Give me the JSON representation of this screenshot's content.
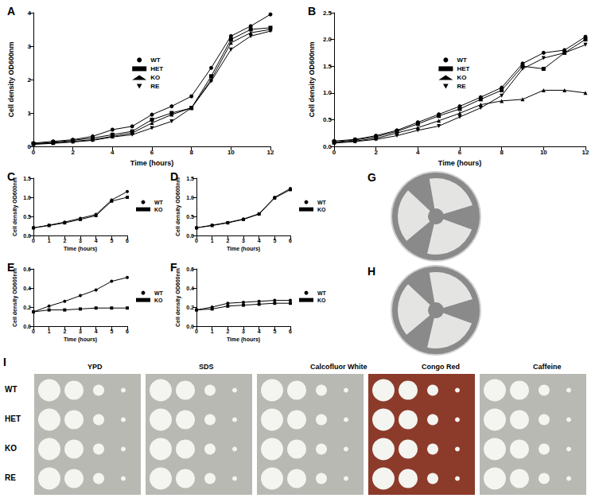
{
  "chart_data": [
    {
      "type": "line",
      "title": "A",
      "x_label": "Time (hours)",
      "y_label": "Cell density OD600nm",
      "x": [
        0,
        1,
        2,
        3,
        4,
        5,
        6,
        7,
        8,
        9,
        10,
        11,
        12
      ],
      "xlim": [
        0,
        12
      ],
      "xticks": [
        0,
        2,
        4,
        6,
        8,
        10,
        12
      ],
      "ylim": [
        0,
        4
      ],
      "yticks": [
        0,
        1,
        2,
        3,
        4
      ],
      "grid": false,
      "legend": "center",
      "series": [
        {
          "name": "WT",
          "color": "#000000",
          "marker": "circle",
          "values": [
            0.1,
            0.15,
            0.2,
            0.3,
            0.5,
            0.6,
            0.95,
            1.2,
            1.5,
            2.35,
            3.3,
            3.6,
            3.95
          ]
        },
        {
          "name": "HET",
          "color": "#000000",
          "marker": "square",
          "values": [
            0.08,
            0.12,
            0.18,
            0.25,
            0.35,
            0.45,
            0.8,
            1.0,
            1.15,
            2.1,
            3.2,
            3.5,
            3.55
          ]
        },
        {
          "name": "KO",
          "color": "#000000",
          "marker": "triangle",
          "values": [
            0.07,
            0.1,
            0.15,
            0.2,
            0.3,
            0.4,
            0.7,
            0.95,
            1.15,
            2.0,
            3.1,
            3.4,
            3.5
          ]
        },
        {
          "name": "RE",
          "color": "#000000",
          "marker": "inverted_triangle",
          "values": [
            0.06,
            0.09,
            0.13,
            0.18,
            0.28,
            0.35,
            0.55,
            0.75,
            1.15,
            1.95,
            2.9,
            3.3,
            3.45
          ]
        }
      ]
    },
    {
      "type": "line",
      "title": "B",
      "x_label": "Time (hours)",
      "y_label": "Cell density OD600nm",
      "x": [
        0,
        1,
        2,
        3,
        4,
        5,
        6,
        7,
        8,
        9,
        10,
        11,
        12
      ],
      "xlim": [
        0,
        12
      ],
      "xticks": [
        0,
        2,
        4,
        6,
        8,
        10,
        12
      ],
      "ylim": [
        0,
        2.5
      ],
      "yticks": [
        {
          "value": 0,
          "label": "0.0"
        },
        0.5,
        {
          "value": 1,
          "label": "1.0"
        },
        1.5,
        {
          "value": 2,
          "label": "2.0"
        },
        2.5
      ],
      "grid": false,
      "legend": "center",
      "series": [
        {
          "name": "WT",
          "color": "#000000",
          "marker": "circle",
          "values": [
            0.1,
            0.13,
            0.2,
            0.3,
            0.45,
            0.6,
            0.75,
            0.92,
            1.1,
            1.55,
            1.75,
            1.8,
            2.05
          ]
        },
        {
          "name": "HET",
          "color": "#000000",
          "marker": "square",
          "values": [
            0.08,
            0.12,
            0.18,
            0.28,
            0.42,
            0.57,
            0.7,
            0.88,
            1.05,
            1.5,
            1.45,
            1.75,
            2.0
          ]
        },
        {
          "name": "KO",
          "color": "#000000",
          "marker": "triangle",
          "values": [
            0.07,
            0.1,
            0.15,
            0.25,
            0.35,
            0.48,
            0.62,
            0.78,
            0.85,
            0.88,
            1.05,
            1.05,
            1.0
          ]
        },
        {
          "name": "RE",
          "color": "#000000",
          "marker": "inverted_triangle",
          "values": [
            0.06,
            0.09,
            0.13,
            0.2,
            0.3,
            0.38,
            0.55,
            0.72,
            0.95,
            1.45,
            1.65,
            1.75,
            1.9
          ]
        }
      ]
    },
    {
      "type": "line",
      "title": "C",
      "x_label": "Time (hours)",
      "y_label": "Cell density OD600nm",
      "x": [
        0,
        1,
        2,
        3,
        4,
        5,
        6
      ],
      "xlim": [
        0,
        6
      ],
      "xticks": [
        0,
        1,
        2,
        3,
        4,
        5,
        6
      ],
      "ylim": [
        0,
        1.5
      ],
      "yticks": [
        {
          "value": 0,
          "label": "0.0"
        },
        0.5,
        {
          "value": 1,
          "label": "1.0"
        },
        1.5
      ],
      "grid": false,
      "legend": "outside right",
      "series": [
        {
          "name": "WT",
          "color": "#000000",
          "marker": "circle",
          "values": [
            0.2,
            0.27,
            0.35,
            0.45,
            0.55,
            0.93,
            1.15
          ]
        },
        {
          "name": "KO",
          "color": "#000000",
          "marker": "square",
          "values": [
            0.2,
            0.26,
            0.33,
            0.42,
            0.52,
            0.9,
            1.0
          ]
        }
      ]
    },
    {
      "type": "line",
      "title": "D",
      "x_label": "Time (hours)",
      "y_label": "Cell density OD600nm",
      "x": [
        0,
        1,
        2,
        3,
        4,
        5,
        6
      ],
      "xlim": [
        0,
        6
      ],
      "xticks": [
        0,
        1,
        2,
        3,
        4,
        5,
        6
      ],
      "ylim": [
        0,
        1.5
      ],
      "yticks": [
        {
          "value": 0,
          "label": "0.0"
        },
        0.5,
        {
          "value": 1,
          "label": "1.0"
        },
        1.5
      ],
      "grid": false,
      "legend": "outside right",
      "series": [
        {
          "name": "WT",
          "color": "#000000",
          "marker": "circle",
          "values": [
            0.2,
            0.27,
            0.34,
            0.43,
            0.57,
            1.0,
            1.23
          ]
        },
        {
          "name": "KO",
          "color": "#000000",
          "marker": "square",
          "values": [
            0.2,
            0.26,
            0.33,
            0.42,
            0.56,
            0.98,
            1.2
          ]
        }
      ]
    },
    {
      "type": "line",
      "title": "E",
      "x_label": "Time (hours)",
      "y_label": "Cell density OD600nm",
      "x": [
        0,
        1,
        2,
        3,
        4,
        5,
        6
      ],
      "xlim": [
        0,
        6
      ],
      "xticks": [
        0,
        1,
        2,
        3,
        4,
        5,
        6
      ],
      "ylim": [
        0,
        0.6
      ],
      "yticks": [
        {
          "value": 0,
          "label": "0.0"
        },
        0.2,
        0.4,
        0.6
      ],
      "grid": false,
      "legend": "outside right",
      "series": [
        {
          "name": "WT",
          "color": "#000000",
          "marker": "circle",
          "values": [
            0.15,
            0.21,
            0.26,
            0.32,
            0.38,
            0.47,
            0.51
          ]
        },
        {
          "name": "KO",
          "color": "#000000",
          "marker": "square",
          "values": [
            0.15,
            0.17,
            0.17,
            0.18,
            0.19,
            0.19,
            0.19
          ]
        }
      ]
    },
    {
      "type": "line",
      "title": "F",
      "x_label": "Time (hours)",
      "y_label": "Cell density OD600nm",
      "x": [
        0,
        1,
        2,
        3,
        4,
        5,
        6
      ],
      "xlim": [
        0,
        6
      ],
      "xticks": [
        0,
        1,
        2,
        3,
        4,
        5,
        6
      ],
      "ylim": [
        0,
        0.6
      ],
      "yticks": [
        {
          "value": 0,
          "label": "0.0"
        },
        0.2,
        0.4,
        0.6
      ],
      "grid": false,
      "legend": "outside right",
      "series": [
        {
          "name": "WT",
          "color": "#000000",
          "marker": "circle",
          "values": [
            0.17,
            0.2,
            0.24,
            0.25,
            0.26,
            0.27,
            0.27
          ]
        },
        {
          "name": "KO",
          "color": "#000000",
          "marker": "square",
          "values": [
            0.17,
            0.18,
            0.21,
            0.22,
            0.23,
            0.24,
            0.24
          ]
        }
      ]
    }
  ],
  "images": [
    {
      "title": "G"
    },
    {
      "title": "H"
    },
    {
      "title": "I",
      "rows": [
        "WT",
        "HET",
        "KO",
        "RE"
      ],
      "columns": [
        "YPD",
        "SDS",
        "Calcofluor White",
        "Congo Red",
        "Caffeine"
      ]
    }
  ]
}
